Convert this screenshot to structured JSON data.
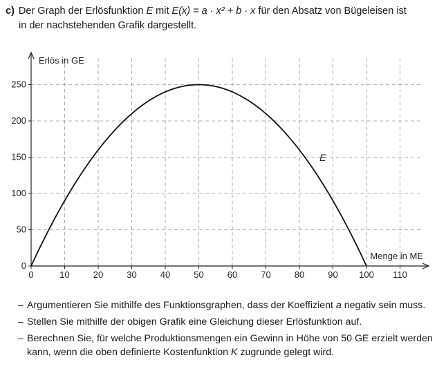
{
  "intro": {
    "label": "c)",
    "line1_pre": "Der Graph der Erlösfunktion ",
    "fn_name": "E",
    "line1_mid": " mit ",
    "formula": "E(x) = a · x² + b · x",
    "line1_post": " für den Absatz von Bügeleisen ist",
    "line2": "in der nachstehenden Grafik dargestellt."
  },
  "chart_data": {
    "type": "line",
    "ylabel": "Erlös in GE",
    "xlabel": "Menge in ME",
    "xlim": [
      0,
      110
    ],
    "ylim": [
      0,
      250
    ],
    "x_ticks": [
      "0",
      "10",
      "20",
      "30",
      "40",
      "50",
      "60",
      "70",
      "80",
      "90",
      "100",
      "110"
    ],
    "y_ticks": [
      "0",
      "50",
      "100",
      "150",
      "200",
      "250"
    ],
    "grid": "dashed",
    "series": [
      {
        "name": "E",
        "x": [
          0,
          10,
          20,
          30,
          40,
          50,
          60,
          70,
          80,
          90,
          100
        ],
        "y": [
          0,
          90,
          160,
          210,
          240,
          250,
          240,
          210,
          160,
          90,
          0
        ]
      }
    ]
  },
  "tasks": [
    {
      "dash": "–",
      "pre": "Argumentieren Sie mithilfe des Funktionsgraphen, dass der Koeffizient ",
      "var": "a",
      "post": " negativ sein muss."
    },
    {
      "dash": "–",
      "pre": "Stellen Sie mithilfe der obigen Grafik eine Gleichung dieser Erlösfunktion auf.",
      "var": "",
      "post": ""
    },
    {
      "dash": "–",
      "pre": "Berechnen Sie, für welche Produktionsmengen ein Gewinn in Höhe von 50 GE erzielt werden kann, wenn die oben definierte Kostenfunktion ",
      "var": "K",
      "post": " zugrunde gelegt wird."
    }
  ]
}
